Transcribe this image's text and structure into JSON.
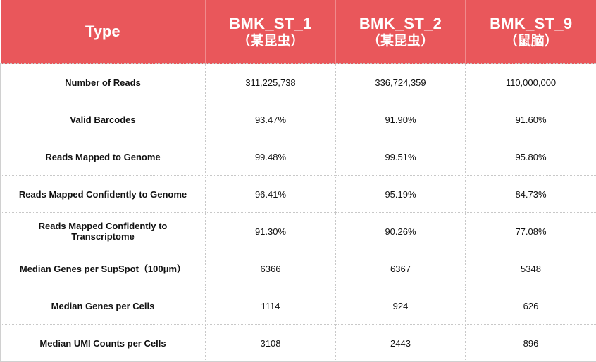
{
  "table": {
    "header": {
      "type_label": "Type",
      "samples": [
        {
          "name": "BMK_ST_1",
          "sub": "（某昆虫）"
        },
        {
          "name": "BMK_ST_2",
          "sub": "（某昆虫）"
        },
        {
          "name": "BMK_ST_9",
          "sub": "（鼠脑）"
        }
      ]
    },
    "rows": [
      {
        "metric": "Number of Reads",
        "values": [
          "311,225,738",
          "336,724,359",
          "110,000,000"
        ]
      },
      {
        "metric": "Valid Barcodes",
        "values": [
          "93.47%",
          "91.90%",
          "91.60%"
        ]
      },
      {
        "metric": "Reads Mapped to Genome",
        "values": [
          "99.48%",
          "99.51%",
          "95.80%"
        ]
      },
      {
        "metric": "Reads Mapped Confidently to Genome",
        "values": [
          "96.41%",
          "95.19%",
          "84.73%"
        ]
      },
      {
        "metric": "Reads Mapped Confidently to Transcriptome",
        "values": [
          "91.30%",
          "90.26%",
          "77.08%"
        ]
      },
      {
        "metric": "Median Genes per SupSpot（100μm）",
        "values": [
          "6366",
          "6367",
          "5348"
        ]
      },
      {
        "metric": "Median Genes per Cells",
        "values": [
          "1114",
          "924",
          "626"
        ]
      },
      {
        "metric": "Median UMI Counts per Cells",
        "values": [
          "3108",
          "2443",
          "896"
        ]
      }
    ]
  },
  "colors": {
    "header_bg": "#e9575b",
    "header_text": "#ffffff",
    "grid": "#c8c8c8"
  }
}
